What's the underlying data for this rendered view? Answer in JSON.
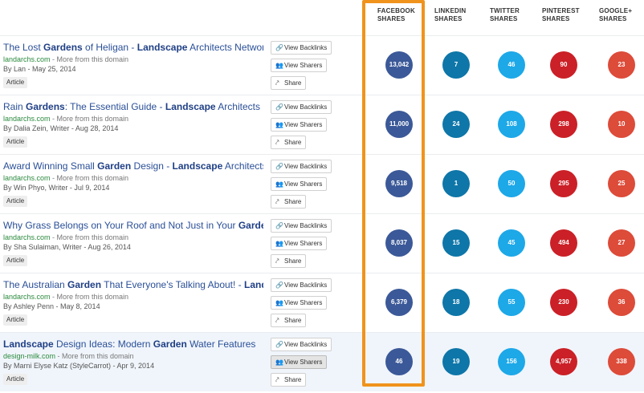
{
  "columns": {
    "facebook": [
      "FACEBOOK",
      "SHARES"
    ],
    "linkedin": [
      "LINKEDIN",
      "SHARES"
    ],
    "twitter": [
      "TWITTER",
      "SHARES"
    ],
    "pinterest": [
      "PINTEREST",
      "SHARES"
    ],
    "googleplus": [
      "GOOGLE+",
      "SHARES"
    ]
  },
  "buttons": {
    "backlinks": "View Backlinks",
    "sharers": "View Sharers",
    "share": "Share"
  },
  "more_from_domain": " - More from this domain",
  "rows": [
    {
      "title_parts": [
        [
          "The Lost ",
          false
        ],
        [
          "Gardens",
          true
        ],
        [
          " of Heligan - ",
          false
        ],
        [
          "Landscape",
          true
        ],
        [
          " Architects Network",
          false
        ]
      ],
      "domain": "landarchs.com",
      "author": "By Lan - May 25, 2014",
      "tag": "Article",
      "shares": {
        "facebook": "13,042",
        "linkedin": "7",
        "twitter": "46",
        "pinterest": "90",
        "googleplus": "23"
      }
    },
    {
      "title_parts": [
        [
          "Rain ",
          false
        ],
        [
          "Gardens",
          true
        ],
        [
          ": The Essential Guide - ",
          false
        ],
        [
          "Landscape",
          true
        ],
        [
          " Architects Net",
          false
        ]
      ],
      "domain": "landarchs.com",
      "author": "By Dalia Zein, Writer - Aug 28, 2014",
      "tag": "Article",
      "shares": {
        "facebook": "11,000",
        "linkedin": "24",
        "twitter": "108",
        "pinterest": "298",
        "googleplus": "10"
      }
    },
    {
      "title_parts": [
        [
          "Award Winning Small ",
          false
        ],
        [
          "Garden",
          true
        ],
        [
          " Design - ",
          false
        ],
        [
          "Landscape",
          true
        ],
        [
          " Architects N",
          false
        ]
      ],
      "domain": "landarchs.com",
      "author": "By Win Phyo, Writer - Jul 9, 2014",
      "tag": "Article",
      "shares": {
        "facebook": "9,518",
        "linkedin": "1",
        "twitter": "50",
        "pinterest": "295",
        "googleplus": "25"
      }
    },
    {
      "title_parts": [
        [
          "Why Grass Belongs on Your Roof and Not Just in Your ",
          false
        ],
        [
          "Garden",
          true
        ]
      ],
      "domain": "landarchs.com",
      "author": "By Sha Sulaiman, Writer - Aug 26, 2014",
      "tag": "Article",
      "shares": {
        "facebook": "8,037",
        "linkedin": "15",
        "twitter": "45",
        "pinterest": "494",
        "googleplus": "27"
      }
    },
    {
      "title_parts": [
        [
          "The Australian ",
          false
        ],
        [
          "Garden",
          true
        ],
        [
          " That Everyone's Talking About! - ",
          false
        ],
        [
          "Landsc",
          true
        ]
      ],
      "domain": "landarchs.com",
      "author": "By Ashley Penn - May 8, 2014",
      "tag": "Article",
      "shares": {
        "facebook": "6,379",
        "linkedin": "18",
        "twitter": "55",
        "pinterest": "230",
        "googleplus": "36"
      }
    },
    {
      "title_parts": [
        [
          "Landscape",
          true
        ],
        [
          " Design Ideas: Modern ",
          false
        ],
        [
          "Garden",
          true
        ],
        [
          " Water Features",
          false
        ]
      ],
      "domain": "design-milk.com",
      "author": "By Marni Elyse Katz (StyleCarrot) - Apr 9, 2014",
      "tag": "Article",
      "shares": {
        "facebook": "46",
        "linkedin": "19",
        "twitter": "156",
        "pinterest": "4,957",
        "googleplus": "338"
      },
      "highlight": true,
      "sharers_active": true
    }
  ],
  "icons": {
    "backlinks": "link-icon",
    "sharers": "users-icon",
    "share": "share-icon"
  },
  "colors": {
    "facebook": "#3b5998",
    "linkedin": "#0e76a8",
    "twitter": "#1da8e8",
    "pinterest": "#cb2027",
    "googleplus": "#dd4b39",
    "highlight_box": "#f0931c"
  }
}
